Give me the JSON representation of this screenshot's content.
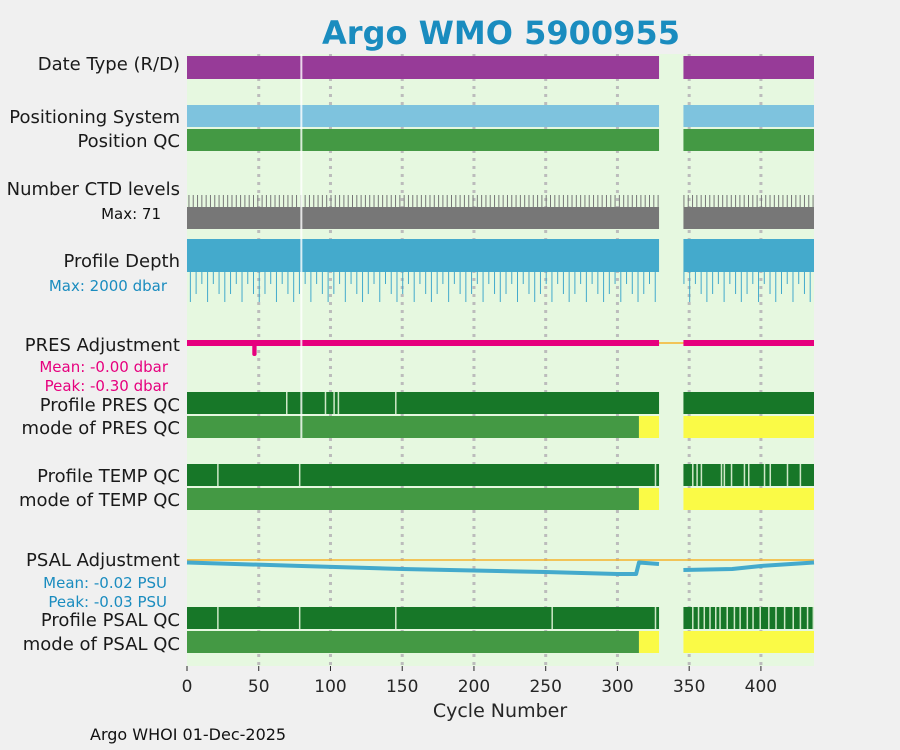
{
  "chart_data": {
    "type": "timeline",
    "title": "Argo WMO 5900955",
    "xlabel": "Cycle Number",
    "xlim": [
      0,
      437
    ],
    "xticks": [
      0,
      50,
      100,
      150,
      200,
      250,
      300,
      350,
      400
    ],
    "missing_cycles": [
      329,
      346
    ],
    "rows": [
      {
        "id": "date-type",
        "label": "Date Type (R/D)",
        "segments": [
          {
            "from": 0,
            "to": 329,
            "value": "R/D"
          },
          {
            "from": 346,
            "to": 437,
            "value": "R/D"
          }
        ]
      },
      {
        "id": "positioning-system",
        "label": "Positioning System",
        "segments": [
          {
            "from": 0,
            "to": 329,
            "value": "GPS"
          },
          {
            "from": 346,
            "to": 437,
            "value": "GPS"
          }
        ]
      },
      {
        "id": "position-qc",
        "label": "Position QC",
        "segments": [
          {
            "from": 0,
            "to": 329,
            "value": 1
          },
          {
            "from": 346,
            "to": 437,
            "value": 1
          }
        ]
      },
      {
        "id": "number-ctd-levels",
        "label": "Number CTD levels",
        "max_label": "Max: 71",
        "max": 71
      },
      {
        "id": "profile-depth",
        "label": "Profile Depth",
        "max_label": "Max: 2000 dbar",
        "max": 2000
      },
      {
        "id": "pres-adjustment",
        "label": "PRES Adjustment",
        "mean_label": "Mean: -0.00 dbar",
        "peak_label": "Peak: -0.30 dbar",
        "mean": -0.0,
        "peak": -0.3,
        "peak_cycle": 47
      },
      {
        "id": "profile-pres-qc",
        "label": "Profile PRES QC"
      },
      {
        "id": "mode-pres-qc",
        "label": "mode of PRES QC",
        "good_until": 315,
        "flagged_from": 315
      },
      {
        "id": "profile-temp-qc",
        "label": "Profile TEMP QC"
      },
      {
        "id": "mode-temp-qc",
        "label": "mode of TEMP QC",
        "good_until": 315,
        "flagged_from": 315
      },
      {
        "id": "psal-adjustment",
        "label": "PSAL Adjustment",
        "mean_label": "Mean: -0.02 PSU",
        "peak_label": "Peak: -0.03 PSU",
        "series": {
          "x": [
            0,
            80,
            150,
            250,
            300,
            313,
            315,
            329,
            346,
            380,
            400,
            437
          ],
          "y": [
            -0.005,
            -0.012,
            -0.018,
            -0.024,
            -0.028,
            -0.028,
            -0.005,
            -0.008,
            -0.02,
            -0.018,
            -0.012,
            -0.005
          ]
        }
      },
      {
        "id": "profile-psal-qc",
        "label": "Profile PSAL QC"
      },
      {
        "id": "mode-psal-qc",
        "label": "mode of PSAL QC",
        "good_until": 315,
        "flagged_from": 315
      }
    ],
    "colors": {
      "plot_bg": "#e6f8e0",
      "page_bg": "#f0f0f0",
      "title": "#1a8cbf",
      "date_type": "#973b98",
      "positioning": "#7ec3de",
      "position_qc": "#449944",
      "ctd_levels": "#777777",
      "profile_depth": "#44aacc",
      "pres_adjust": "#e6007e",
      "profile_qc": "#177728",
      "mode_qc": "#449944",
      "flag_yellow": "#fafa46",
      "psal_adjust": "#44aacc",
      "zero_line": "#f5b22b",
      "grid": "#bcbcbc"
    }
  },
  "footer": "Argo WHOI 01-Dec-2025"
}
